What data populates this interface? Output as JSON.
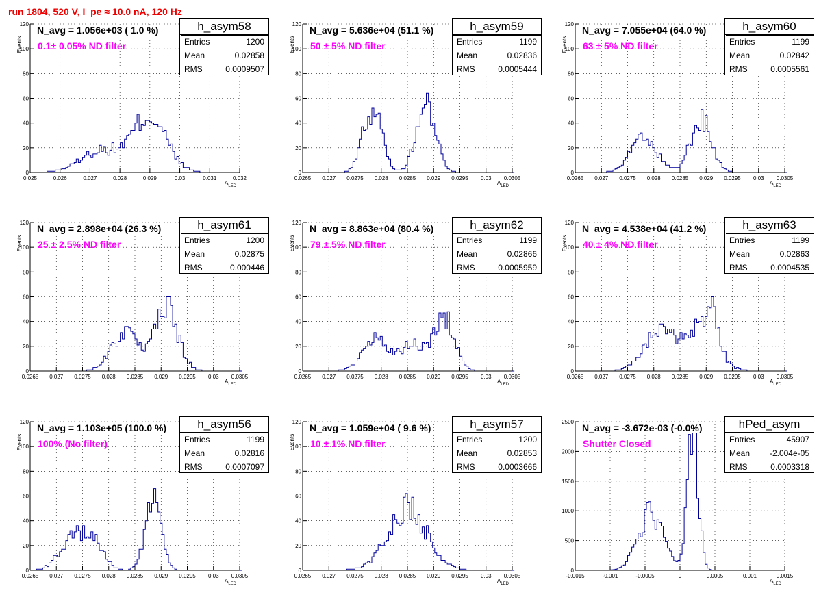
{
  "page": {
    "title": "run 1804,   520 V, I_pe ≈ 10.0 nA, 120 Hz"
  },
  "chart_data": [
    {
      "type": "histogram",
      "name": "h_asym58",
      "navg": "N_avg = 1.056e+03 ( 1.0 %)",
      "filter": "0.1± 0.05% ND filter",
      "stats": {
        "entries": "1200",
        "mean": "0.02858",
        "rms": "0.0009507"
      },
      "xlabel": "A",
      "xlabel_sub": "LED",
      "ylabel": "Events",
      "xlim": [
        0.025,
        0.032
      ],
      "ylim": [
        0,
        120
      ],
      "xticks": [
        "0.025",
        "0.026",
        "0.027",
        "0.028",
        "0.029",
        "0.03",
        "0.031",
        "0.032"
      ],
      "yticks": [
        "0",
        "20",
        "40",
        "60",
        "80",
        "100",
        "120"
      ],
      "peaks": [
        [
          0.0274,
          0.0007,
          18
        ],
        [
          0.029,
          0.00055,
          45
        ]
      ],
      "bin_width": 7e-05
    },
    {
      "type": "histogram",
      "name": "h_asym59",
      "navg": "N_avg = 5.636e+04 (51.1 %)",
      "filter": "50 ± 5% ND filter",
      "stats": {
        "entries": "1199",
        "mean": "0.02836",
        "rms": "0.0005444"
      },
      "xlabel": "A",
      "xlabel_sub": "LED",
      "ylabel": "Events",
      "xlim": [
        0.0265,
        0.0305
      ],
      "ylim": [
        0,
        120
      ],
      "xticks": [
        "0.0265",
        "0.027",
        "0.0275",
        "0.028",
        "0.0285",
        "0.029",
        "0.0295",
        "0.03",
        "0.0305"
      ],
      "yticks": [
        "0",
        "20",
        "40",
        "60",
        "80",
        "100",
        "120"
      ],
      "peaks": [
        [
          0.02783,
          0.00018,
          52
        ],
        [
          0.02885,
          0.00018,
          58
        ]
      ],
      "bin_width": 4e-05
    },
    {
      "type": "histogram",
      "name": "h_asym60",
      "navg": "N_avg = 7.055e+04 (64.0 %)",
      "filter": "63 ± 5% ND filter",
      "stats": {
        "entries": "1199",
        "mean": "0.02842",
        "rms": "0.0005561"
      },
      "xlabel": "A",
      "xlabel_sub": "LED",
      "ylabel": "Events",
      "xlim": [
        0.0265,
        0.0305
      ],
      "ylim": [
        0,
        120
      ],
      "xticks": [
        "0.0265",
        "0.027",
        "0.0275",
        "0.028",
        "0.0285",
        "0.029",
        "0.0295",
        "0.03",
        "0.0305"
      ],
      "yticks": [
        "0",
        "20",
        "40",
        "60",
        "80",
        "100",
        "120"
      ],
      "peaks": [
        [
          0.0278,
          0.00025,
          27
        ],
        [
          0.0289,
          0.0002,
          42
        ]
      ],
      "bin_width": 4e-05
    },
    {
      "type": "histogram",
      "name": "h_asym61",
      "navg": "N_avg = 2.898e+04 (26.3 %)",
      "filter": "25 ± 2.5% ND filter",
      "stats": {
        "entries": "1200",
        "mean": "0.02875",
        "rms": "0.000446"
      },
      "xlabel": "A",
      "xlabel_sub": "LED",
      "ylabel": "Events",
      "xlim": [
        0.0265,
        0.0305
      ],
      "ylim": [
        0,
        120
      ],
      "xticks": [
        "0.0265",
        "0.027",
        "0.0275",
        "0.028",
        "0.0285",
        "0.029",
        "0.0295",
        "0.03",
        "0.0305"
      ],
      "yticks": [
        "0",
        "20",
        "40",
        "60",
        "80",
        "100",
        "120"
      ],
      "peaks": [
        [
          0.0283,
          0.00025,
          31
        ],
        [
          0.0291,
          0.00022,
          50
        ]
      ],
      "bin_width": 4e-05
    },
    {
      "type": "histogram",
      "name": "h_asym62",
      "navg": "N_avg = 8.863e+04 (80.4 %)",
      "filter": "79 ± 5% ND filter",
      "stats": {
        "entries": "1199",
        "mean": "0.02866",
        "rms": "0.0005959"
      },
      "xlabel": "A",
      "xlabel_sub": "LED",
      "ylabel": "Events",
      "xlim": [
        0.0265,
        0.0305
      ],
      "ylim": [
        0,
        120
      ],
      "xticks": [
        "0.0265",
        "0.027",
        "0.0275",
        "0.028",
        "0.0285",
        "0.029",
        "0.0295",
        "0.03",
        "0.0305"
      ],
      "yticks": [
        "0",
        "20",
        "40",
        "60",
        "80",
        "100",
        "120"
      ],
      "peaks": [
        [
          0.0279,
          0.00025,
          25
        ],
        [
          0.0286,
          0.0002,
          22
        ],
        [
          0.0292,
          0.0002,
          42
        ]
      ],
      "bin_width": 4e-05
    },
    {
      "type": "histogram",
      "name": "h_asym63",
      "navg": "N_avg = 4.538e+04 (41.2 %)",
      "filter": "40 ± 4% ND filter",
      "stats": {
        "entries": "1199",
        "mean": "0.02863",
        "rms": "0.0004535"
      },
      "xlabel": "A",
      "xlabel_sub": "LED",
      "ylabel": "Events",
      "xlim": [
        0.0265,
        0.0305
      ],
      "ylim": [
        0,
        120
      ],
      "xticks": [
        "0.0265",
        "0.027",
        "0.0275",
        "0.028",
        "0.0285",
        "0.029",
        "0.0295",
        "0.03",
        "0.0305"
      ],
      "yticks": [
        "0",
        "20",
        "40",
        "60",
        "80",
        "100",
        "120"
      ],
      "peaks": [
        [
          0.0281,
          0.0003,
          30
        ],
        [
          0.0289,
          0.0003,
          35
        ],
        [
          0.02915,
          0.0001,
          25
        ]
      ],
      "bin_width": 4e-05
    },
    {
      "type": "histogram",
      "name": "h_asym56",
      "navg": "N_avg = 1.103e+05 (100.0 %)",
      "filter": "100% (No filter)",
      "stats": {
        "entries": "1199",
        "mean": "0.02816",
        "rms": "0.0007097"
      },
      "xlabel": "A",
      "xlabel_sub": "LED",
      "ylabel": "Events",
      "xlim": [
        0.0265,
        0.0305
      ],
      "ylim": [
        0,
        120
      ],
      "xticks": [
        "0.0265",
        "0.027",
        "0.0275",
        "0.028",
        "0.0285",
        "0.029",
        "0.0295",
        "0.03",
        "0.0305"
      ],
      "yticks": [
        "0",
        "20",
        "40",
        "60",
        "80",
        "100",
        "120"
      ],
      "peaks": [
        [
          0.0273,
          0.00025,
          24
        ],
        [
          0.0277,
          0.0002,
          22
        ],
        [
          0.02885,
          0.00015,
          58
        ]
      ],
      "bin_width": 4e-05
    },
    {
      "type": "histogram",
      "name": "h_asym57",
      "navg": "N_avg = 1.059e+04 ( 9.6 %)",
      "filter": "10 ± 1% ND filter",
      "stats": {
        "entries": "1200",
        "mean": "0.02853",
        "rms": "0.0003666"
      },
      "xlabel": "A",
      "xlabel_sub": "LED",
      "ylabel": "Events",
      "xlim": [
        0.0265,
        0.0305
      ],
      "ylim": [
        0,
        120
      ],
      "xticks": [
        "0.0265",
        "0.027",
        "0.0275",
        "0.028",
        "0.0285",
        "0.029",
        "0.0295",
        "0.03",
        "0.0305"
      ],
      "yticks": [
        "0",
        "20",
        "40",
        "60",
        "80",
        "100",
        "120"
      ],
      "peaks": [
        [
          0.0285,
          0.00037,
          50
        ]
      ],
      "bin_width": 4e-05
    },
    {
      "type": "histogram",
      "name": "hPed_asym",
      "navg": "N_avg = -3.672e-03 (-0.0%)",
      "filter": "Shutter Closed",
      "stats": {
        "entries": "45907",
        "mean": "-2.004e-05",
        "rms": "0.0003318"
      },
      "xlabel": "A",
      "xlabel_sub": "LED",
      "ylabel": "",
      "xlim": [
        -0.0015,
        0.0015
      ],
      "ylim": [
        0,
        2500
      ],
      "xticks": [
        "-0.0015",
        "-0.001",
        "-0.0005",
        "0",
        "0.0005",
        "0.001",
        "0.0015"
      ],
      "yticks": [
        "0",
        "500",
        "1000",
        "1500",
        "2000",
        "2500"
      ],
      "peaks": [
        [
          -0.00042,
          0.00018,
          950
        ],
        [
          0.00018,
          8e-05,
          2250
        ]
      ],
      "bin_width": 3e-05
    }
  ]
}
